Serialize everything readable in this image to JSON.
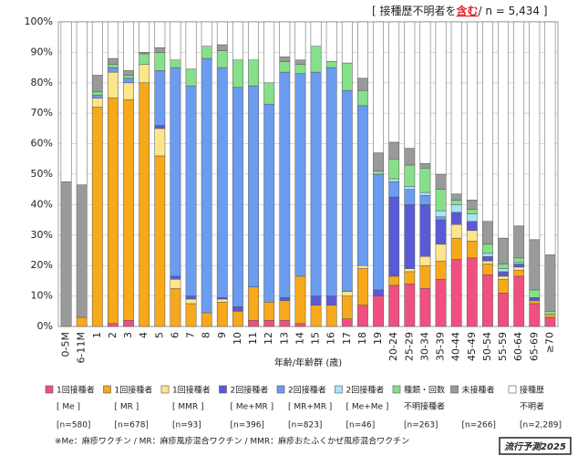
{
  "chart_data": {
    "type": "stacked_bar",
    "title": "[ 接種歴不明者を",
    "title_emphasis": "含む",
    "title_n": "/ n = 5,434 ]",
    "x_label": "年齢/年齢群 (歳)",
    "footnote": "※Me：麻疹ワクチン / MR：麻疹風疹混合ワクチン / MMR：麻疹おたふくかぜ風疹混合ワクチン",
    "badge": "流行予測2025",
    "categories": [
      "0-5M",
      "6-11M",
      "1",
      "2",
      "3",
      "4",
      "5",
      "6",
      "7",
      "8",
      "9",
      "10",
      "11",
      "12",
      "13",
      "14",
      "15",
      "16",
      "17",
      "18",
      "19",
      "20-24",
      "25-29",
      "30-34",
      "35-39",
      "40-44",
      "45-49",
      "50-54",
      "55-59",
      "60-64",
      "65-69",
      "≥70"
    ],
    "ylim": [
      0,
      100
    ],
    "yticks": [
      {
        "value": 0,
        "label": "0%"
      },
      {
        "value": 10,
        "label": "10%"
      },
      {
        "value": 20,
        "label": "20%"
      },
      {
        "value": 30,
        "label": "30%"
      },
      {
        "value": 40,
        "label": "40%"
      },
      {
        "value": 50,
        "label": "50%"
      },
      {
        "value": 60,
        "label": "60%"
      },
      {
        "value": 70,
        "label": "70%"
      },
      {
        "value": 80,
        "label": "80%"
      },
      {
        "value": 90,
        "label": "90%"
      },
      {
        "value": 100,
        "label": "100%"
      }
    ],
    "grid": true,
    "series": [
      {
        "name": "1回接種者",
        "detail": "[ Me ]",
        "n": "[n=580]",
        "color": "#f0507f",
        "values": [
          0,
          0,
          0,
          1,
          2,
          0,
          0,
          0,
          0,
          0,
          0,
          0,
          2,
          2,
          2,
          1,
          0,
          0,
          2.5,
          7,
          10,
          13.5,
          14,
          12.5,
          15.5,
          22,
          22.5,
          17,
          11,
          16.5,
          7.5,
          3
        ]
      },
      {
        "name": "1回接種者",
        "detail": "[ MR ]",
        "n": "[n=678]",
        "color": "#f7a81b",
        "values": [
          0,
          3,
          72,
          74,
          72.5,
          80,
          56,
          12.5,
          7.5,
          4.5,
          8,
          5,
          11,
          6,
          6.5,
          15.5,
          7,
          7,
          7.5,
          12,
          0,
          3,
          4,
          7.5,
          6,
          7,
          5.5,
          3.5,
          4.5,
          2,
          1,
          1
        ]
      },
      {
        "name": "1回接種者",
        "detail": "[ MMR ]",
        "n": "[n=93]",
        "color": "#fde68a",
        "values": [
          0,
          0,
          3,
          8.5,
          5.5,
          6,
          9,
          3,
          1.5,
          0,
          1,
          0,
          0,
          0,
          0,
          0,
          0,
          0,
          1.5,
          1,
          0,
          0,
          1,
          3,
          5.5,
          4.5,
          3.5,
          1,
          1,
          1,
          0,
          0
        ]
      },
      {
        "name": "2回接種者",
        "detail": "[ Me+MR ]",
        "n": "[n=396]",
        "color": "#5a5ad6",
        "values": [
          0,
          0,
          0,
          0,
          0,
          0,
          1,
          1,
          1,
          0,
          0.5,
          1.5,
          0,
          0,
          1,
          0,
          3,
          3,
          0,
          0,
          2,
          26,
          21,
          17,
          8,
          4,
          3,
          1.5,
          1.5,
          1,
          1,
          0
        ]
      },
      {
        "name": "2回接種者",
        "detail": "[ MR+MR ]",
        "n": "[n=823]",
        "color": "#6b9cf0",
        "values": [
          0,
          0,
          1,
          1.5,
          1.5,
          0,
          18,
          68.5,
          69,
          83.5,
          75.5,
          72,
          66,
          65,
          74,
          66.5,
          73.5,
          75,
          66,
          52.5,
          38,
          5,
          5,
          3,
          1,
          0,
          0,
          0,
          0,
          0,
          0,
          0
        ]
      },
      {
        "name": "2回接種者",
        "detail": "[ Me+Me ]",
        "n": "[n=46]",
        "color": "#a8e4f5",
        "values": [
          0,
          0,
          0,
          0,
          0,
          0,
          0,
          0,
          0,
          0,
          0,
          0,
          0,
          0,
          0,
          0,
          0,
          0,
          0,
          0,
          0,
          1,
          1,
          1,
          2,
          2.5,
          2.5,
          1,
          1,
          0.5,
          0,
          0
        ]
      },
      {
        "name": "種類・回数",
        "detail": "不明接種者",
        "n": "[n=263]",
        "color": "#86e08a",
        "values": [
          0,
          0,
          1,
          1,
          1,
          3.5,
          6,
          2.5,
          5.5,
          4,
          5.5,
          9,
          8.5,
          7,
          3.5,
          3,
          8.5,
          2,
          9,
          5,
          1,
          6.5,
          7,
          8,
          7,
          1.5,
          1.5,
          3,
          1.5,
          1.5,
          2.5,
          1
        ]
      },
      {
        "name": "未接種者",
        "n": "[n=266]",
        "color": "#9a9a9a",
        "values": [
          47.5,
          43.5,
          5.5,
          2,
          1.5,
          0.5,
          1.5,
          0,
          0,
          0,
          2,
          0,
          0,
          0,
          1.5,
          1.5,
          0,
          0,
          0,
          4,
          6,
          5.5,
          5.5,
          1.5,
          5,
          2,
          3,
          7.5,
          8.5,
          10.5,
          16.5,
          18.5
        ]
      },
      {
        "name": "接種歴",
        "detail": "不明者",
        "n": "[n=2,289]",
        "color": "#ffffff",
        "values": [
          52.5,
          53.5,
          17.5,
          12,
          16,
          10,
          8.5,
          12.5,
          15.5,
          8,
          7.5,
          12.5,
          12.5,
          20,
          11.5,
          12.5,
          8,
          13,
          13.5,
          18.5,
          43,
          39.5,
          41.5,
          46.5,
          50,
          56.5,
          58.5,
          65.5,
          71,
          67,
          71.5,
          76.5
        ]
      }
    ]
  }
}
